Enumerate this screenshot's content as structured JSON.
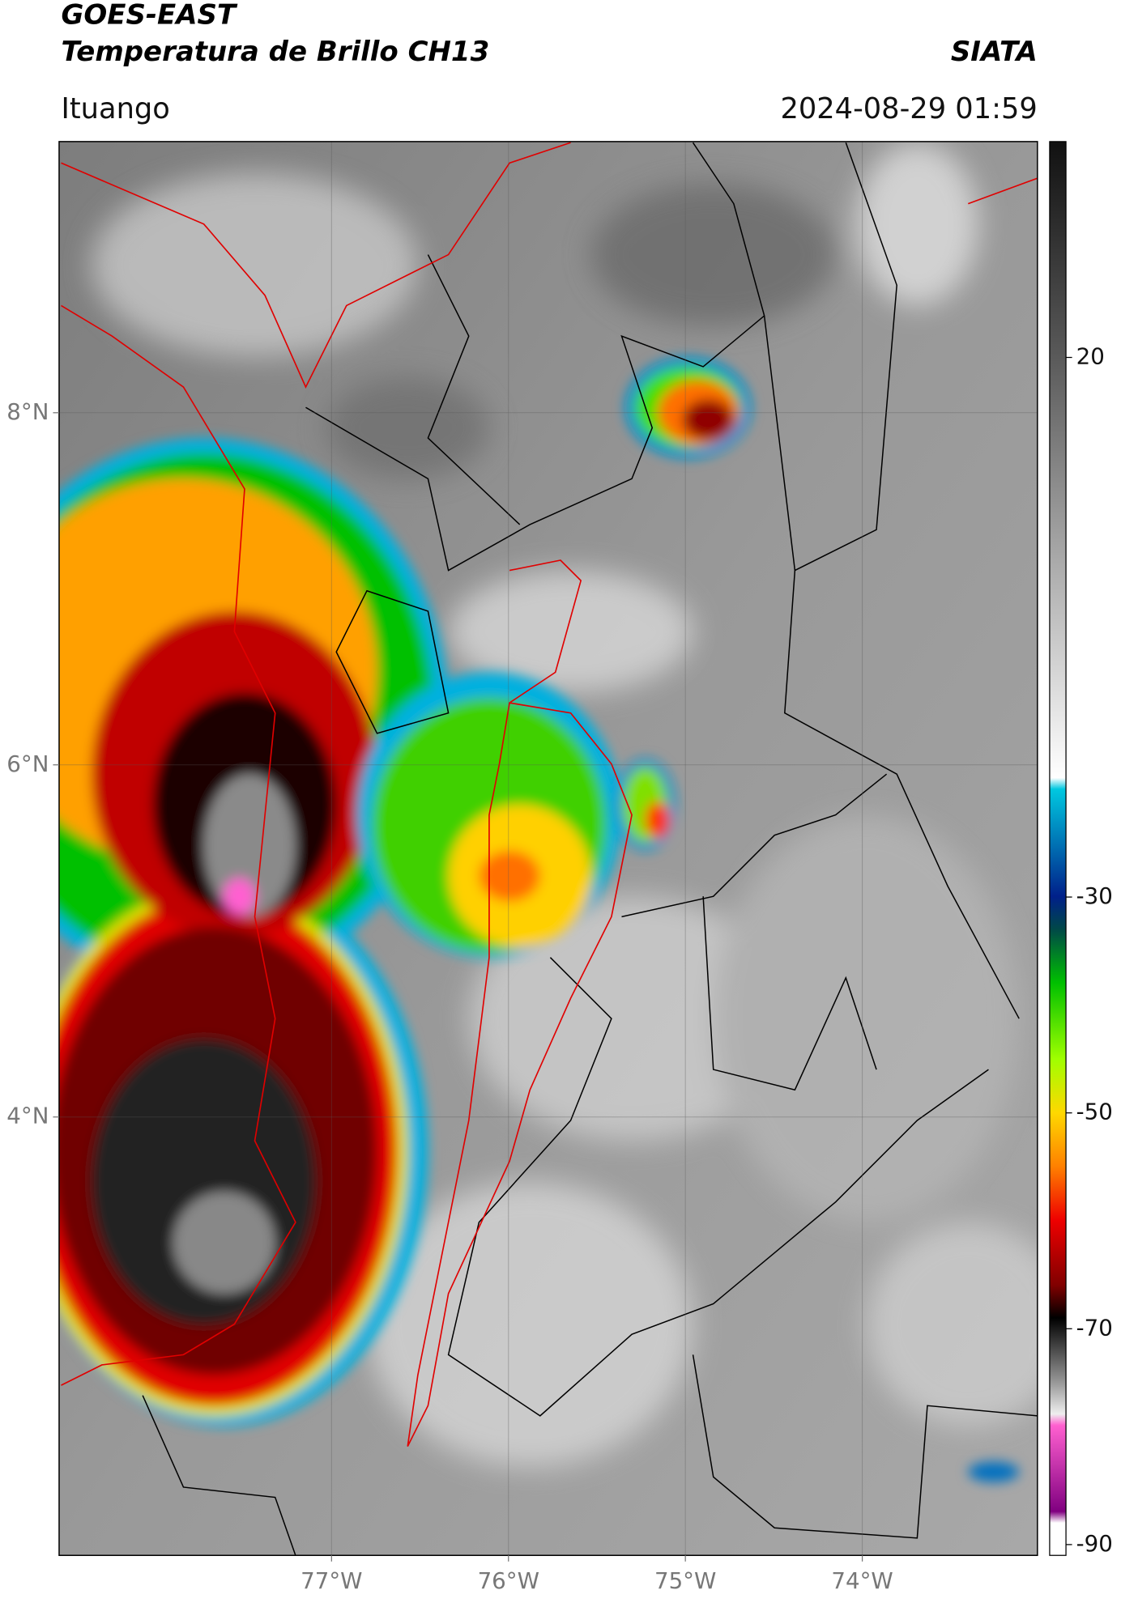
{
  "header": {
    "title": "GOES-EAST",
    "subtitle": "Temperatura de Brillo CH13",
    "source": "SIATA",
    "location": "Ituango",
    "datetime": "2024-08-29 01:59"
  },
  "map": {
    "lonlim": [
      -78.54,
      -73.01
    ],
    "latlim": [
      1.51,
      9.54
    ],
    "lonticks": [
      {
        "value": -77,
        "label": "77°W"
      },
      {
        "value": -76,
        "label": "76°W"
      },
      {
        "value": -75,
        "label": "75°W"
      },
      {
        "value": -74,
        "label": "74°W"
      }
    ],
    "latticks": [
      {
        "value": 8,
        "label": "8°N"
      },
      {
        "value": 6,
        "label": "6°N"
      },
      {
        "value": 4,
        "label": "4°N"
      }
    ]
  },
  "colorbar": {
    "lim": [
      -91,
      40
    ],
    "ticks": [
      20,
      -30,
      -50,
      -70,
      -90
    ]
  }
}
